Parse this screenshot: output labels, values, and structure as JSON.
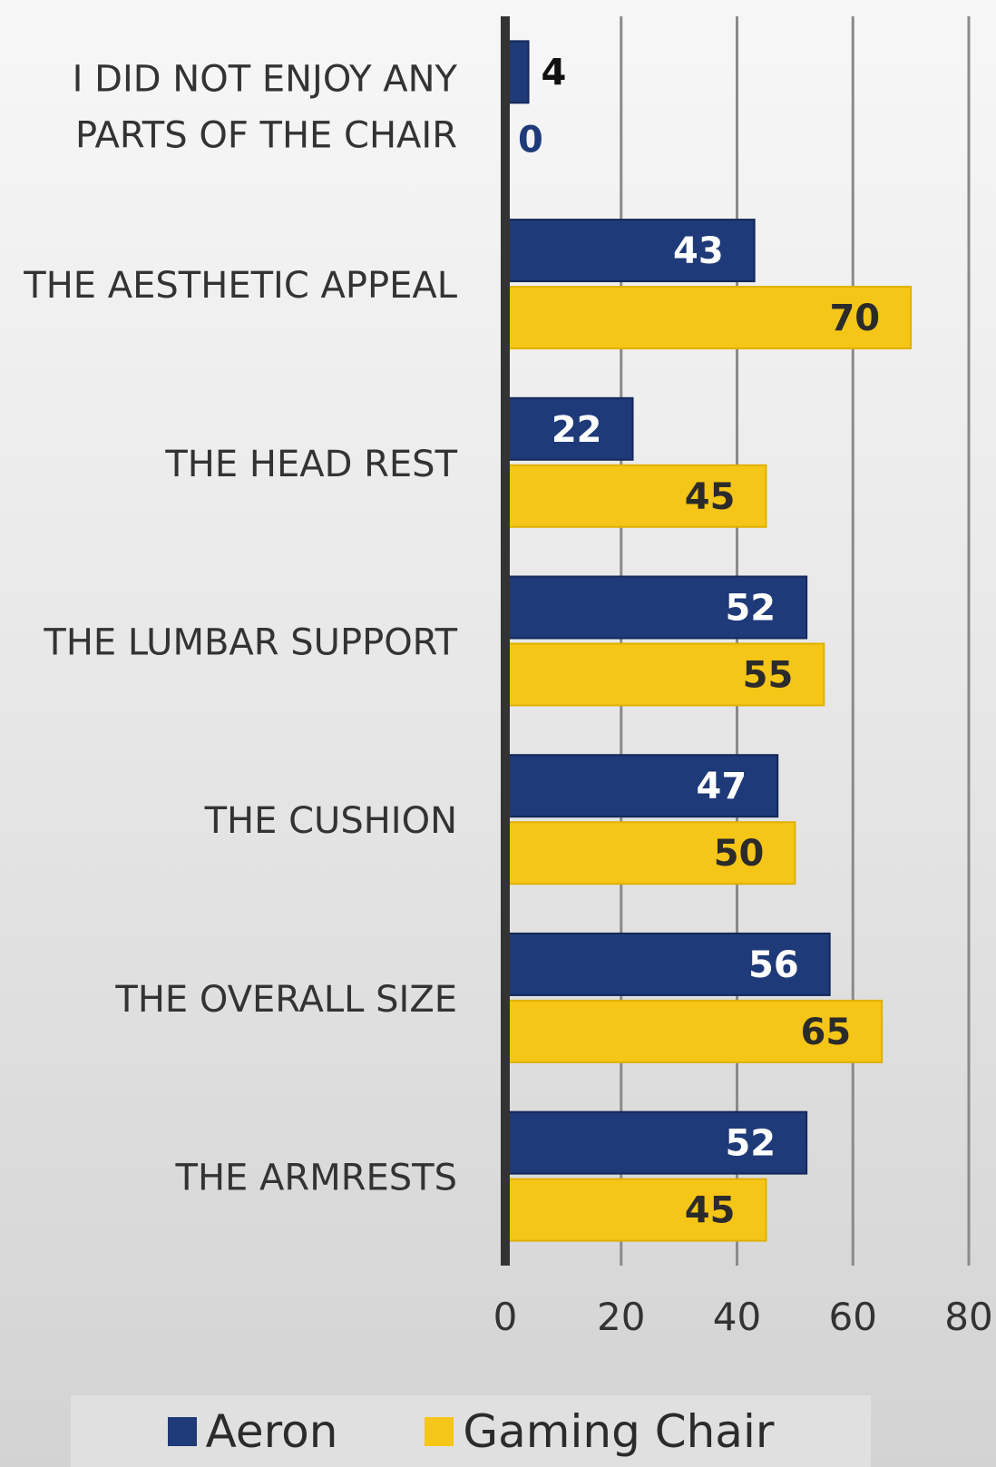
{
  "chart_data": {
    "type": "bar",
    "orientation": "horizontal",
    "categories": [
      "I DID NOT ENJOY ANY PARTS OF THE CHAIR",
      "THE AESTHETIC APPEAL",
      "THE HEAD REST",
      "THE LUMBAR SUPPORT",
      "THE CUSHION",
      "THE OVERALL SIZE",
      "THE ARMRESTS"
    ],
    "category_lines": [
      [
        "I DID NOT ENJOY ANY",
        "PARTS OF THE CHAIR"
      ],
      [
        "THE AESTHETIC APPEAL"
      ],
      [
        "THE HEAD REST"
      ],
      [
        "THE LUMBAR SUPPORT"
      ],
      [
        "THE CUSHION"
      ],
      [
        "THE OVERALL SIZE"
      ],
      [
        "THE ARMRESTS"
      ]
    ],
    "series": [
      {
        "name": "Aeron",
        "values": [
          4,
          43,
          22,
          52,
          47,
          56,
          52
        ],
        "color": "#1f3a78",
        "label_color": "#ffffff"
      },
      {
        "name": "Gaming Chair",
        "values": [
          0,
          70,
          45,
          55,
          50,
          65,
          45
        ],
        "color": "#f5c518",
        "label_color": "#2b2b2b"
      }
    ],
    "xlim": [
      0,
      80
    ],
    "xticks": [
      "0",
      "20",
      "40",
      "60",
      "80"
    ],
    "xtick_values": [
      0,
      20,
      40,
      60,
      80
    ],
    "grid": true,
    "legend": "bottom",
    "title": "",
    "xlabel": "",
    "ylabel": ""
  }
}
